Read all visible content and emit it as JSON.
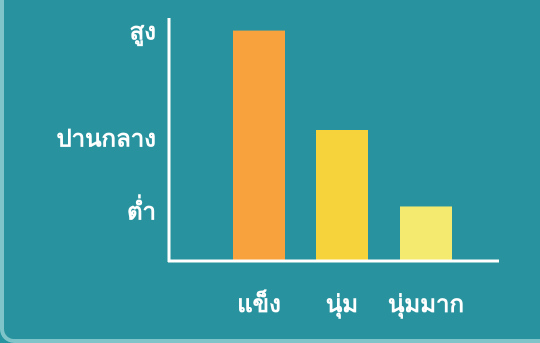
{
  "chart_data": {
    "type": "bar",
    "categories": [
      "แข็ง",
      "นุ่ม",
      "นุ่มมาก"
    ],
    "values": [
      3.0,
      1.7,
      0.7
    ],
    "ylim": [
      0,
      3.4
    ],
    "y_tick_labels": [
      {
        "label": "สูง",
        "value": 3.0
      },
      {
        "label": "ปานกลาง",
        "value": 1.6
      },
      {
        "label": "ต่ำ",
        "value": 0.65
      }
    ],
    "grid": false,
    "colors": [
      "#f7a23d",
      "#f7d33b",
      "#f4ea70"
    ],
    "background": "#28939e",
    "axis_color": "#ffffff"
  }
}
